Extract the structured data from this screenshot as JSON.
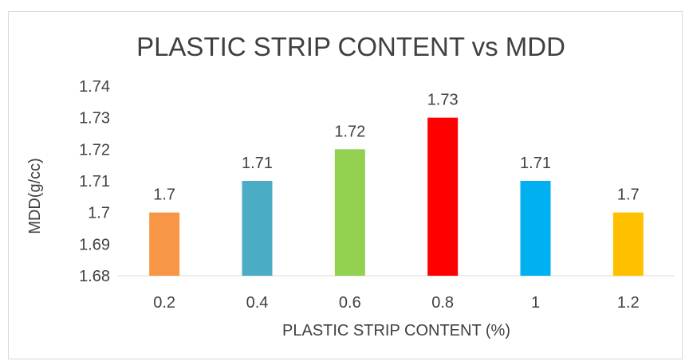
{
  "chart_data": {
    "type": "bar",
    "title": "PLASTIC STRIP CONTENT vs MDD",
    "xlabel": "PLASTIC STRIP CONTENT (%)",
    "ylabel": "MDD(g/cc)",
    "categories": [
      "0.2",
      "0.4",
      "0.6",
      "0.8",
      "1",
      "1.2"
    ],
    "values": [
      1.7,
      1.71,
      1.72,
      1.73,
      1.71,
      1.7
    ],
    "data_labels": [
      "1.7",
      "1.71",
      "1.72",
      "1.73",
      "1.71",
      "1.7"
    ],
    "colors": [
      "#F79646",
      "#4BACC6",
      "#92D050",
      "#FF0000",
      "#00B0F0",
      "#FFC000"
    ],
    "ylim": [
      1.68,
      1.74
    ],
    "yticks": [
      1.68,
      1.69,
      1.7,
      1.71,
      1.72,
      1.73,
      1.74
    ],
    "ytick_labels": [
      "1.68",
      "1.69",
      "1.7",
      "1.71",
      "1.72",
      "1.73",
      "1.74"
    ],
    "grid": false,
    "legend": "none",
    "axis_color": "#d9d9d9",
    "text_color": "#404040"
  }
}
